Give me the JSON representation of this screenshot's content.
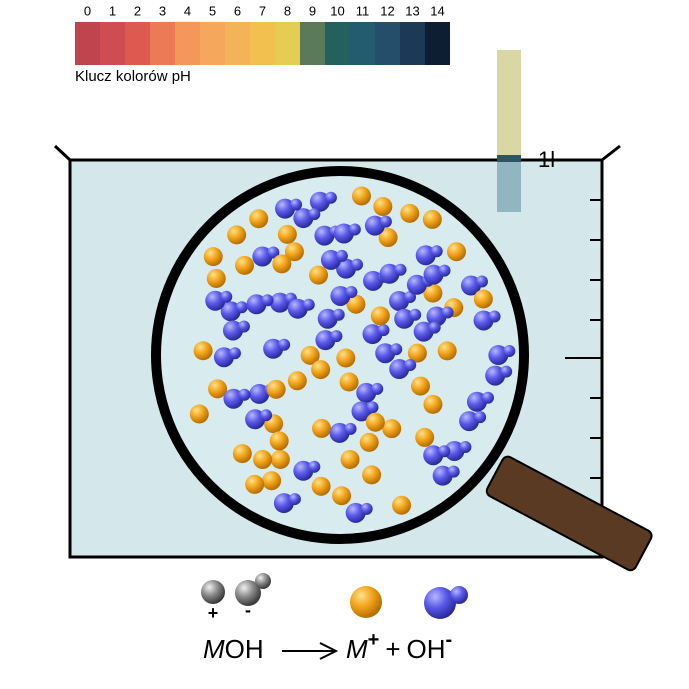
{
  "ph_key": {
    "labels": [
      "0",
      "1",
      "2",
      "3",
      "4",
      "5",
      "6",
      "7",
      "8",
      "9",
      "10",
      "11",
      "12",
      "13",
      "14"
    ],
    "caption": "Klucz kolorów pH"
  },
  "beaker": {
    "volume_label": "1l"
  },
  "legend": {
    "ion_signs": [
      "+",
      "-"
    ]
  },
  "equation": {
    "reactant_metal": "M",
    "reactant_rest": "OH",
    "product_metal": "M",
    "product_charge": "+",
    "plus": "+",
    "product_anion": "OH",
    "anion_charge": "-"
  }
}
